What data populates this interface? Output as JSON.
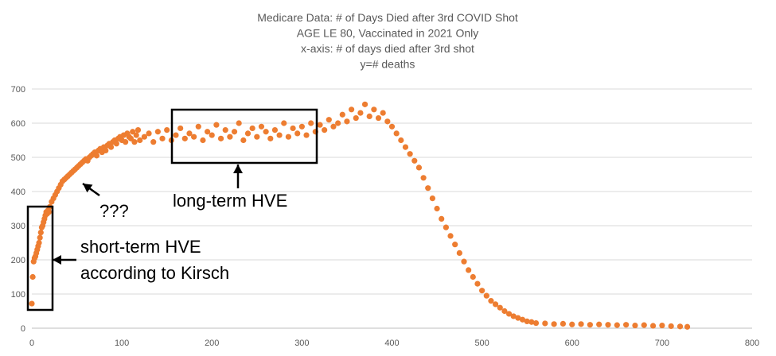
{
  "chart_data": {
    "type": "scatter",
    "title_lines": [
      "Medicare Data: # of Days Died after 3rd COVID Shot",
      "AGE LE 80, Vaccinated in 2021 Only",
      "x-axis: # of days died after 3rd shot",
      "y=# deaths"
    ],
    "xlabel": "",
    "ylabel": "",
    "xlim": [
      0,
      800
    ],
    "ylim": [
      0,
      700
    ],
    "x_ticks": [
      0,
      100,
      200,
      300,
      400,
      500,
      600,
      700,
      800
    ],
    "y_ticks": [
      0,
      100,
      200,
      300,
      400,
      500,
      600,
      700
    ],
    "grid": "horizontal",
    "marker_color": "#ED7D31",
    "series": [
      {
        "points": [
          [
            0,
            72
          ],
          [
            1,
            150
          ],
          [
            2,
            195
          ],
          [
            3,
            205
          ],
          [
            4,
            210
          ],
          [
            5,
            220
          ],
          [
            6,
            230
          ],
          [
            7,
            240
          ],
          [
            8,
            250
          ],
          [
            9,
            265
          ],
          [
            10,
            280
          ],
          [
            11,
            295
          ],
          [
            12,
            300
          ],
          [
            13,
            310
          ],
          [
            14,
            320
          ],
          [
            15,
            330
          ],
          [
            16,
            340
          ],
          [
            17,
            335
          ],
          [
            18,
            345
          ],
          [
            19,
            340
          ],
          [
            20,
            355
          ],
          [
            22,
            370
          ],
          [
            24,
            380
          ],
          [
            26,
            390
          ],
          [
            28,
            400
          ],
          [
            30,
            410
          ],
          [
            32,
            420
          ],
          [
            34,
            430
          ],
          [
            36,
            435
          ],
          [
            38,
            440
          ],
          [
            40,
            445
          ],
          [
            42,
            450
          ],
          [
            44,
            455
          ],
          [
            46,
            460
          ],
          [
            48,
            465
          ],
          [
            50,
            470
          ],
          [
            52,
            475
          ],
          [
            54,
            480
          ],
          [
            56,
            485
          ],
          [
            58,
            490
          ],
          [
            60,
            495
          ],
          [
            62,
            490
          ],
          [
            64,
            500
          ],
          [
            66,
            505
          ],
          [
            68,
            510
          ],
          [
            70,
            515
          ],
          [
            72,
            505
          ],
          [
            74,
            520
          ],
          [
            76,
            525
          ],
          [
            78,
            515
          ],
          [
            80,
            530
          ],
          [
            82,
            520
          ],
          [
            84,
            535
          ],
          [
            86,
            540
          ],
          [
            88,
            530
          ],
          [
            90,
            545
          ],
          [
            92,
            550
          ],
          [
            94,
            540
          ],
          [
            96,
            555
          ],
          [
            98,
            560
          ],
          [
            100,
            550
          ],
          [
            102,
            565
          ],
          [
            104,
            545
          ],
          [
            106,
            570
          ],
          [
            108,
            560
          ],
          [
            110,
            555
          ],
          [
            112,
            575
          ],
          [
            114,
            545
          ],
          [
            116,
            565
          ],
          [
            118,
            580
          ],
          [
            120,
            550
          ],
          [
            125,
            560
          ],
          [
            130,
            570
          ],
          [
            135,
            545
          ],
          [
            140,
            575
          ],
          [
            145,
            555
          ],
          [
            150,
            580
          ],
          [
            155,
            550
          ],
          [
            160,
            565
          ],
          [
            165,
            585
          ],
          [
            170,
            555
          ],
          [
            175,
            570
          ],
          [
            180,
            560
          ],
          [
            185,
            590
          ],
          [
            190,
            550
          ],
          [
            195,
            575
          ],
          [
            200,
            565
          ],
          [
            205,
            595
          ],
          [
            210,
            555
          ],
          [
            215,
            580
          ],
          [
            220,
            560
          ],
          [
            225,
            575
          ],
          [
            230,
            600
          ],
          [
            235,
            550
          ],
          [
            240,
            570
          ],
          [
            245,
            585
          ],
          [
            250,
            560
          ],
          [
            255,
            590
          ],
          [
            260,
            575
          ],
          [
            265,
            555
          ],
          [
            270,
            580
          ],
          [
            275,
            565
          ],
          [
            280,
            600
          ],
          [
            285,
            560
          ],
          [
            290,
            585
          ],
          [
            295,
            570
          ],
          [
            300,
            590
          ],
          [
            305,
            565
          ],
          [
            310,
            600
          ],
          [
            315,
            575
          ],
          [
            320,
            595
          ],
          [
            325,
            580
          ],
          [
            330,
            610
          ],
          [
            335,
            590
          ],
          [
            340,
            600
          ],
          [
            345,
            625
          ],
          [
            350,
            605
          ],
          [
            355,
            640
          ],
          [
            360,
            615
          ],
          [
            365,
            630
          ],
          [
            370,
            655
          ],
          [
            375,
            620
          ],
          [
            380,
            640
          ],
          [
            385,
            615
          ],
          [
            390,
            630
          ],
          [
            395,
            605
          ],
          [
            400,
            590
          ],
          [
            405,
            570
          ],
          [
            410,
            550
          ],
          [
            415,
            530
          ],
          [
            420,
            510
          ],
          [
            425,
            490
          ],
          [
            430,
            470
          ],
          [
            435,
            440
          ],
          [
            440,
            410
          ],
          [
            445,
            380
          ],
          [
            450,
            350
          ],
          [
            455,
            320
          ],
          [
            460,
            295
          ],
          [
            465,
            270
          ],
          [
            470,
            245
          ],
          [
            475,
            220
          ],
          [
            480,
            195
          ],
          [
            485,
            170
          ],
          [
            490,
            150
          ],
          [
            495,
            130
          ],
          [
            500,
            110
          ],
          [
            505,
            95
          ],
          [
            510,
            80
          ],
          [
            515,
            70
          ],
          [
            520,
            60
          ],
          [
            525,
            50
          ],
          [
            530,
            42
          ],
          [
            535,
            35
          ],
          [
            540,
            30
          ],
          [
            545,
            25
          ],
          [
            550,
            20
          ],
          [
            555,
            18
          ],
          [
            560,
            15
          ],
          [
            570,
            14
          ],
          [
            580,
            12
          ],
          [
            590,
            13
          ],
          [
            600,
            11
          ],
          [
            610,
            12
          ],
          [
            620,
            10
          ],
          [
            630,
            11
          ],
          [
            640,
            10
          ],
          [
            650,
            9
          ],
          [
            660,
            10
          ],
          [
            670,
            8
          ],
          [
            680,
            9
          ],
          [
            690,
            7
          ],
          [
            700,
            8
          ],
          [
            710,
            6
          ],
          [
            720,
            5
          ],
          [
            728,
            4
          ]
        ]
      }
    ],
    "annotations": {
      "short_term": [
        "short-term HVE",
        "according to Kirsch"
      ],
      "question": "???",
      "long_term": "long-term HVE"
    }
  }
}
